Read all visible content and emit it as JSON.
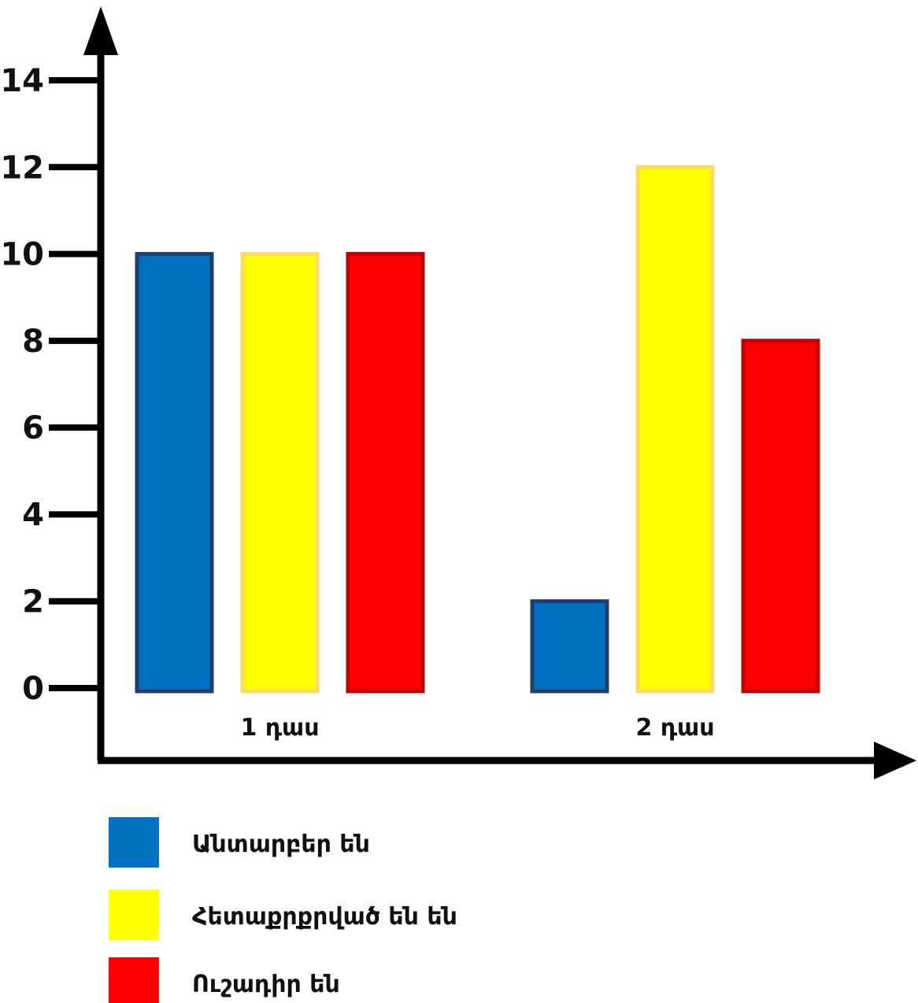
{
  "chart_data": {
    "type": "bar",
    "categories": [
      "1 դաս",
      "2 դաս"
    ],
    "series": [
      {
        "name": "Անտարբեր են",
        "values": [
          10,
          2
        ],
        "color": "#0070c0",
        "stroke": "#1f3f6e"
      },
      {
        "name": "Հետաքրքրված են  են",
        "values": [
          10,
          12
        ],
        "color": "#ffff00",
        "stroke": "#ffd966"
      },
      {
        "name": "Ուշադիր են",
        "values": [
          10,
          8
        ],
        "color": "#ff0000",
        "stroke": "#c00000"
      }
    ],
    "yticks": [
      0,
      2,
      4,
      6,
      8,
      10,
      12,
      14
    ],
    "ylim": [
      0,
      14
    ],
    "legend_position": "bottom-left",
    "grid": false
  }
}
